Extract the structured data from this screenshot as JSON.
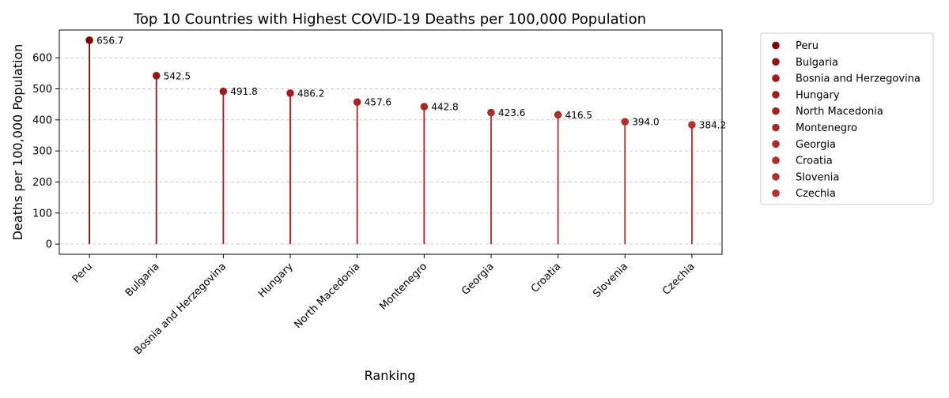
{
  "chart_data": {
    "type": "lollipop",
    "title": "Top 10 Countries with Highest COVID-19 Deaths per 100,000 Population",
    "xlabel": "Ranking",
    "ylabel": "Deaths per 100,000 Population",
    "categories": [
      "Peru",
      "Bulgaria",
      "Bosnia and Herzegovina",
      "Hungary",
      "North Macedonia",
      "Montenegro",
      "Georgia",
      "Croatia",
      "Slovenia",
      "Czechia"
    ],
    "values": [
      656.7,
      542.5,
      491.8,
      486.2,
      457.6,
      442.8,
      423.6,
      416.5,
      394.0,
      384.2
    ],
    "value_labels": [
      "656.7",
      "542.5",
      "491.8",
      "486.2",
      "457.6",
      "442.8",
      "423.6",
      "416.5",
      "394.0",
      "384.2"
    ],
    "colors": [
      "#800000",
      "#971212",
      "#9f1b1b",
      "#a11f1f",
      "#a62424",
      "#a92727",
      "#ac2b2b",
      "#ad2c2c",
      "#b03030",
      "#b23131"
    ],
    "yticks": [
      0,
      100,
      200,
      300,
      400,
      500,
      600
    ],
    "ylim": [
      -32.8,
      689.5
    ],
    "grid": "y-dashed",
    "legend": {
      "placement": "outside-right",
      "entries": [
        "Peru",
        "Bulgaria",
        "Bosnia and Herzegovina",
        "Hungary",
        "North Macedonia",
        "Montenegro",
        "Georgia",
        "Croatia",
        "Slovenia",
        "Czechia"
      ]
    }
  }
}
